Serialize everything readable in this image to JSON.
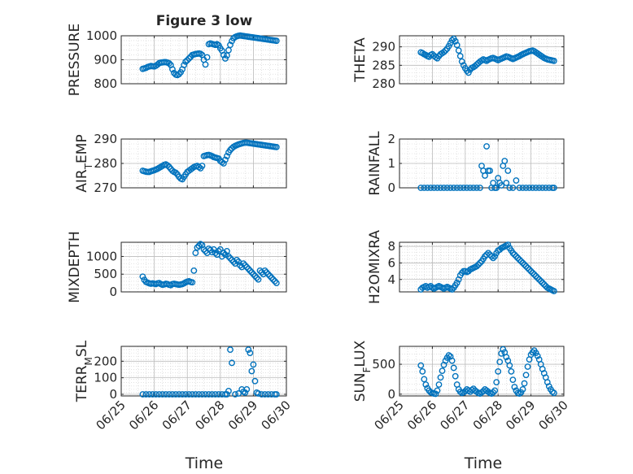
{
  "figure": {
    "title": "Figure 3 low",
    "xlabel": "Time",
    "x_ticks": [
      "06/25",
      "06/26",
      "06/27",
      "06/28",
      "06/29",
      "06/30"
    ],
    "marker_color": "#0072BD"
  },
  "chart_data": [
    {
      "type": "scatter",
      "ylabel": "PRESSURE",
      "xlim": [
        0,
        5
      ],
      "ylim": [
        800,
        1000
      ],
      "yticks": [
        800,
        900,
        1000
      ],
      "x": [
        0.65,
        0.7,
        0.75,
        0.8,
        0.85,
        0.9,
        0.95,
        1.0,
        1.05,
        1.1,
        1.15,
        1.2,
        1.25,
        1.3,
        1.35,
        1.4,
        1.45,
        1.5,
        1.55,
        1.6,
        1.65,
        1.7,
        1.75,
        1.8,
        1.85,
        1.9,
        1.95,
        2.0,
        2.05,
        2.1,
        2.15,
        2.2,
        2.25,
        2.3,
        2.35,
        2.4,
        2.45,
        2.5,
        2.55,
        2.6,
        2.65,
        2.7,
        2.75,
        2.8,
        2.85,
        2.9,
        2.95,
        3.0,
        3.05,
        3.1,
        3.15,
        3.2,
        3.25,
        3.3,
        3.35,
        3.4,
        3.45,
        3.5,
        3.55,
        3.6,
        3.65,
        3.7,
        3.75,
        3.8,
        3.85,
        3.9,
        3.95,
        4.0,
        4.05,
        4.1,
        4.15,
        4.2,
        4.25,
        4.3,
        4.35,
        4.4,
        4.45,
        4.5,
        4.55,
        4.6,
        4.65,
        4.7
      ],
      "y": [
        862,
        864,
        866,
        870,
        872,
        874,
        873,
        872,
        875,
        880,
        886,
        888,
        889,
        890,
        890,
        888,
        885,
        878,
        860,
        845,
        838,
        836,
        840,
        848,
        860,
        878,
        892,
        898,
        905,
        912,
        920,
        922,
        924,
        925,
        926,
        925,
        920,
        900,
        880,
        910,
        965,
        968,
        966,
        964,
        962,
        965,
        960,
        948,
        938,
        920,
        905,
        918,
        940,
        962,
        978,
        990,
        995,
        998,
        1000,
        1001,
        1000,
        999,
        998,
        997,
        996,
        995,
        994,
        993,
        992,
        991,
        990,
        989,
        988,
        987,
        986,
        985,
        984,
        983,
        982,
        981,
        980,
        979
      ]
    },
    {
      "type": "scatter",
      "ylabel": "THETA",
      "xlim": [
        0,
        5
      ],
      "ylim": [
        280,
        293
      ],
      "yticks": [
        280,
        285,
        290
      ],
      "x": [
        0.65,
        0.7,
        0.75,
        0.8,
        0.85,
        0.9,
        0.95,
        1.0,
        1.05,
        1.1,
        1.15,
        1.2,
        1.25,
        1.3,
        1.35,
        1.4,
        1.45,
        1.5,
        1.55,
        1.6,
        1.65,
        1.7,
        1.75,
        1.8,
        1.85,
        1.9,
        1.95,
        2.0,
        2.05,
        2.1,
        2.15,
        2.2,
        2.25,
        2.3,
        2.35,
        2.4,
        2.45,
        2.5,
        2.55,
        2.6,
        2.65,
        2.7,
        2.75,
        2.8,
        2.85,
        2.9,
        2.95,
        3.0,
        3.05,
        3.1,
        3.15,
        3.2,
        3.25,
        3.3,
        3.35,
        3.4,
        3.45,
        3.5,
        3.55,
        3.6,
        3.65,
        3.7,
        3.75,
        3.8,
        3.85,
        3.9,
        3.95,
        4.0,
        4.05,
        4.1,
        4.15,
        4.2,
        4.25,
        4.3,
        4.35,
        4.4,
        4.45,
        4.5,
        4.55,
        4.6,
        4.65,
        4.7
      ],
      "y": [
        288.5,
        288.3,
        288.0,
        287.8,
        287.5,
        287.3,
        287.8,
        288.0,
        287.6,
        287.2,
        286.9,
        287.5,
        288.0,
        288.3,
        288.6,
        289.0,
        289.5,
        290.2,
        291.0,
        291.8,
        292.2,
        291.5,
        290.5,
        289.0,
        287.5,
        286.0,
        285.0,
        284.2,
        283.5,
        283.0,
        283.8,
        284.3,
        284.5,
        284.8,
        285.2,
        285.6,
        286.0,
        286.3,
        286.6,
        286.4,
        286.2,
        286.5,
        286.7,
        286.9,
        287.0,
        286.8,
        286.6,
        286.4,
        286.6,
        286.8,
        287.0,
        287.2,
        287.4,
        287.3,
        287.1,
        286.9,
        286.7,
        286.9,
        287.1,
        287.3,
        287.5,
        287.8,
        288.0,
        288.2,
        288.4,
        288.6,
        288.8,
        288.9,
        289.0,
        288.8,
        288.5,
        288.2,
        287.9,
        287.6,
        287.3,
        287.0,
        286.8,
        286.6,
        286.5,
        286.4,
        286.3,
        286.2
      ]
    },
    {
      "type": "scatter",
      "ylabel": "AIR_TEMP",
      "xlim": [
        0,
        5
      ],
      "ylim": [
        270,
        290
      ],
      "yticks": [
        270,
        280,
        290
      ],
      "x": [
        0.65,
        0.7,
        0.75,
        0.8,
        0.85,
        0.9,
        0.95,
        1.0,
        1.05,
        1.1,
        1.15,
        1.2,
        1.25,
        1.3,
        1.35,
        1.4,
        1.45,
        1.5,
        1.55,
        1.6,
        1.65,
        1.7,
        1.75,
        1.8,
        1.85,
        1.9,
        1.95,
        2.0,
        2.05,
        2.1,
        2.15,
        2.2,
        2.25,
        2.3,
        2.35,
        2.4,
        2.45,
        2.5,
        2.55,
        2.6,
        2.65,
        2.7,
        2.75,
        2.8,
        2.85,
        2.9,
        2.95,
        3.0,
        3.05,
        3.1,
        3.15,
        3.2,
        3.25,
        3.3,
        3.35,
        3.4,
        3.45,
        3.5,
        3.55,
        3.6,
        3.65,
        3.7,
        3.75,
        3.8,
        3.85,
        3.9,
        3.95,
        4.0,
        4.05,
        4.1,
        4.15,
        4.2,
        4.25,
        4.3,
        4.35,
        4.4,
        4.45,
        4.5,
        4.55,
        4.6,
        4.65,
        4.7
      ],
      "y": [
        277.0,
        276.8,
        276.6,
        276.5,
        276.5,
        276.8,
        277.0,
        277.2,
        277.5,
        277.8,
        278.2,
        278.6,
        279.0,
        279.4,
        279.6,
        279.2,
        278.6,
        277.8,
        277.0,
        276.5,
        276.2,
        275.5,
        274.5,
        273.8,
        273.5,
        274.5,
        275.5,
        276.5,
        277.0,
        277.5,
        278.0,
        278.5,
        278.8,
        279.0,
        278.5,
        278.0,
        279.0,
        283.0,
        283.2,
        283.4,
        283.5,
        283.3,
        283.0,
        282.6,
        282.4,
        282.2,
        282.0,
        281.0,
        280.5,
        280.0,
        281.5,
        283.0,
        284.5,
        285.5,
        286.2,
        286.8,
        287.2,
        287.5,
        287.8,
        288.0,
        288.2,
        288.4,
        288.5,
        288.5,
        288.4,
        288.3,
        288.2,
        288.1,
        288.0,
        287.9,
        287.8,
        287.7,
        287.6,
        287.5,
        287.4,
        287.3,
        287.2,
        287.1,
        287.0,
        286.9,
        286.8,
        286.7
      ]
    },
    {
      "type": "scatter",
      "ylabel": "RAINFALL",
      "xlim": [
        0,
        5
      ],
      "ylim": [
        0,
        2
      ],
      "yticks": [
        0,
        1,
        2
      ],
      "x": [
        0.65,
        0.75,
        0.85,
        0.95,
        1.05,
        1.15,
        1.25,
        1.35,
        1.45,
        1.55,
        1.65,
        1.75,
        1.85,
        1.95,
        2.05,
        2.15,
        2.25,
        2.35,
        2.45,
        2.5,
        2.55,
        2.6,
        2.65,
        2.7,
        2.75,
        2.8,
        2.85,
        2.9,
        2.95,
        3.0,
        3.05,
        3.1,
        3.15,
        3.2,
        3.25,
        3.3,
        3.35,
        3.45,
        3.55,
        3.65,
        3.75,
        3.85,
        3.95,
        4.05,
        4.15,
        4.25,
        4.35,
        4.45,
        4.55,
        4.65,
        4.7
      ],
      "y": [
        0,
        0,
        0,
        0,
        0,
        0,
        0,
        0,
        0,
        0,
        0,
        0,
        0,
        0,
        0,
        0,
        0,
        0,
        0,
        0.9,
        0.7,
        0.5,
        1.7,
        0.7,
        0.7,
        0,
        0.2,
        0,
        0,
        0.4,
        0.2,
        0.1,
        0.9,
        1.1,
        0.2,
        0.7,
        0,
        0,
        0.3,
        0,
        0,
        0,
        0,
        0,
        0,
        0,
        0,
        0,
        0,
        0,
        0
      ]
    },
    {
      "type": "scatter",
      "ylabel": "MIXDEPTH",
      "xlim": [
        0,
        5
      ],
      "ylim": [
        0,
        1400
      ],
      "yticks": [
        0,
        500,
        1000
      ],
      "x": [
        0.65,
        0.7,
        0.75,
        0.8,
        0.85,
        0.9,
        0.95,
        1.0,
        1.05,
        1.1,
        1.15,
        1.2,
        1.25,
        1.3,
        1.35,
        1.4,
        1.45,
        1.5,
        1.55,
        1.6,
        1.65,
        1.7,
        1.75,
        1.8,
        1.85,
        1.9,
        1.95,
        2.0,
        2.05,
        2.1,
        2.15,
        2.2,
        2.25,
        2.3,
        2.35,
        2.4,
        2.45,
        2.5,
        2.55,
        2.6,
        2.65,
        2.7,
        2.75,
        2.8,
        2.85,
        2.9,
        2.95,
        3.0,
        3.05,
        3.1,
        3.15,
        3.2,
        3.25,
        3.3,
        3.35,
        3.4,
        3.45,
        3.5,
        3.55,
        3.6,
        3.65,
        3.7,
        3.75,
        3.8,
        3.85,
        3.9,
        3.95,
        4.0,
        4.05,
        4.1,
        4.15,
        4.2,
        4.25,
        4.3,
        4.35,
        4.4,
        4.45,
        4.5,
        4.55,
        4.6,
        4.65,
        4.7
      ],
      "y": [
        430,
        340,
        280,
        260,
        240,
        230,
        240,
        230,
        220,
        240,
        250,
        220,
        200,
        210,
        230,
        220,
        200,
        190,
        220,
        230,
        220,
        210,
        200,
        210,
        220,
        240,
        270,
        290,
        300,
        280,
        270,
        600,
        1100,
        1250,
        1300,
        1350,
        1320,
        1200,
        1150,
        1100,
        1220,
        1180,
        1120,
        1200,
        1100,
        1050,
        1150,
        1200,
        1000,
        1100,
        1050,
        1150,
        1000,
        950,
        900,
        850,
        800,
        900,
        850,
        750,
        700,
        800,
        750,
        700,
        650,
        600,
        550,
        500,
        450,
        400,
        350,
        600,
        550,
        500,
        600,
        550,
        500,
        450,
        400,
        350,
        300,
        250
      ]
    },
    {
      "type": "scatter",
      "ylabel": "H2OMIXRA",
      "xlim": [
        0,
        5
      ],
      "ylim": [
        2.5,
        8.5
      ],
      "yticks": [
        4,
        6,
        8
      ],
      "x": [
        0.65,
        0.7,
        0.75,
        0.8,
        0.85,
        0.9,
        0.95,
        1.0,
        1.05,
        1.1,
        1.15,
        1.2,
        1.25,
        1.3,
        1.35,
        1.4,
        1.45,
        1.5,
        1.55,
        1.6,
        1.65,
        1.7,
        1.75,
        1.8,
        1.85,
        1.9,
        1.95,
        2.0,
        2.05,
        2.1,
        2.15,
        2.2,
        2.25,
        2.3,
        2.35,
        2.4,
        2.45,
        2.5,
        2.55,
        2.6,
        2.65,
        2.7,
        2.75,
        2.8,
        2.85,
        2.9,
        2.95,
        3.0,
        3.05,
        3.1,
        3.15,
        3.2,
        3.25,
        3.3,
        3.35,
        3.4,
        3.45,
        3.5,
        3.55,
        3.6,
        3.65,
        3.7,
        3.75,
        3.8,
        3.85,
        3.9,
        3.95,
        4.0,
        4.05,
        4.1,
        4.15,
        4.2,
        4.25,
        4.3,
        4.35,
        4.4,
        4.45,
        4.5,
        4.55,
        4.6,
        4.65,
        4.7
      ],
      "y": [
        2.8,
        3.0,
        3.1,
        3.2,
        3.0,
        3.1,
        3.2,
        3.0,
        2.9,
        3.0,
        3.1,
        3.2,
        3.1,
        3.0,
        2.9,
        3.0,
        3.1,
        3.0,
        2.9,
        2.8,
        3.0,
        3.3,
        3.6,
        4.0,
        4.5,
        4.8,
        5.0,
        5.0,
        4.9,
        5.0,
        5.2,
        5.3,
        5.4,
        5.5,
        5.6,
        5.8,
        6.0,
        6.2,
        6.5,
        6.8,
        7.0,
        7.2,
        7.0,
        6.8,
        6.6,
        6.8,
        7.2,
        7.5,
        7.6,
        7.8,
        7.9,
        8.0,
        8.1,
        8.2,
        7.8,
        7.5,
        7.2,
        7.0,
        6.8,
        6.6,
        6.4,
        6.2,
        6.0,
        5.8,
        5.6,
        5.4,
        5.2,
        5.0,
        4.8,
        4.6,
        4.4,
        4.2,
        4.0,
        3.8,
        3.6,
        3.4,
        3.2,
        3.0,
        2.9,
        2.8,
        2.7,
        2.6
      ]
    },
    {
      "type": "scatter",
      "ylabel": "TERR_MSL",
      "xlim": [
        0,
        5
      ],
      "ylim": [
        -10,
        290
      ],
      "yticks": [
        0,
        100,
        200
      ],
      "x": [
        0.65,
        0.75,
        0.85,
        0.95,
        1.05,
        1.15,
        1.25,
        1.35,
        1.45,
        1.55,
        1.65,
        1.75,
        1.85,
        1.95,
        2.05,
        2.15,
        2.25,
        2.35,
        2.45,
        2.55,
        2.65,
        2.75,
        2.85,
        2.95,
        3.05,
        3.15,
        3.2,
        3.25,
        3.3,
        3.35,
        3.45,
        3.55,
        3.65,
        3.7,
        3.75,
        3.8,
        3.85,
        3.9,
        3.95,
        4.0,
        4.05,
        4.1,
        4.15,
        4.25,
        4.35,
        4.45,
        4.55,
        4.65,
        4.7
      ],
      "y": [
        0,
        0,
        0,
        0,
        0,
        0,
        0,
        0,
        0,
        0,
        0,
        0,
        0,
        0,
        0,
        0,
        0,
        0,
        0,
        0,
        0,
        0,
        0,
        0,
        0,
        0,
        0,
        20,
        270,
        190,
        0,
        5,
        30,
        15,
        10,
        30,
        270,
        250,
        140,
        180,
        80,
        10,
        5,
        0,
        0,
        0,
        0,
        0,
        0
      ]
    },
    {
      "type": "scatter",
      "ylabel": "SUN_FLUX",
      "xlim": [
        0,
        5
      ],
      "ylim": [
        -30,
        800
      ],
      "yticks": [
        0,
        500
      ],
      "x": [
        0.65,
        0.7,
        0.75,
        0.8,
        0.85,
        0.9,
        0.95,
        1.0,
        1.05,
        1.1,
        1.15,
        1.2,
        1.25,
        1.3,
        1.35,
        1.4,
        1.45,
        1.5,
        1.55,
        1.6,
        1.65,
        1.7,
        1.75,
        1.8,
        1.85,
        1.9,
        1.95,
        2.0,
        2.05,
        2.1,
        2.15,
        2.2,
        2.25,
        2.3,
        2.35,
        2.4,
        2.45,
        2.5,
        2.55,
        2.6,
        2.65,
        2.7,
        2.75,
        2.8,
        2.85,
        2.9,
        2.95,
        3.0,
        3.05,
        3.1,
        3.15,
        3.2,
        3.25,
        3.3,
        3.35,
        3.4,
        3.45,
        3.5,
        3.55,
        3.6,
        3.65,
        3.7,
        3.75,
        3.8,
        3.85,
        3.9,
        3.95,
        4.0,
        4.05,
        4.1,
        4.15,
        4.2,
        4.25,
        4.3,
        4.35,
        4.4,
        4.45,
        4.5,
        4.55,
        4.6,
        4.65,
        4.7
      ],
      "y": [
        480,
        380,
        250,
        160,
        100,
        60,
        30,
        20,
        10,
        5,
        60,
        160,
        280,
        390,
        490,
        560,
        610,
        650,
        630,
        560,
        440,
        300,
        160,
        80,
        40,
        20,
        30,
        50,
        80,
        60,
        40,
        70,
        90,
        60,
        40,
        20,
        10,
        30,
        50,
        80,
        60,
        40,
        20,
        10,
        30,
        60,
        200,
        380,
        540,
        680,
        750,
        700,
        620,
        560,
        480,
        380,
        240,
        120,
        60,
        20,
        10,
        30,
        80,
        180,
        320,
        460,
        580,
        660,
        700,
        730,
        690,
        640,
        580,
        500,
        420,
        350,
        280,
        200,
        130,
        80,
        40,
        20
      ]
    }
  ]
}
